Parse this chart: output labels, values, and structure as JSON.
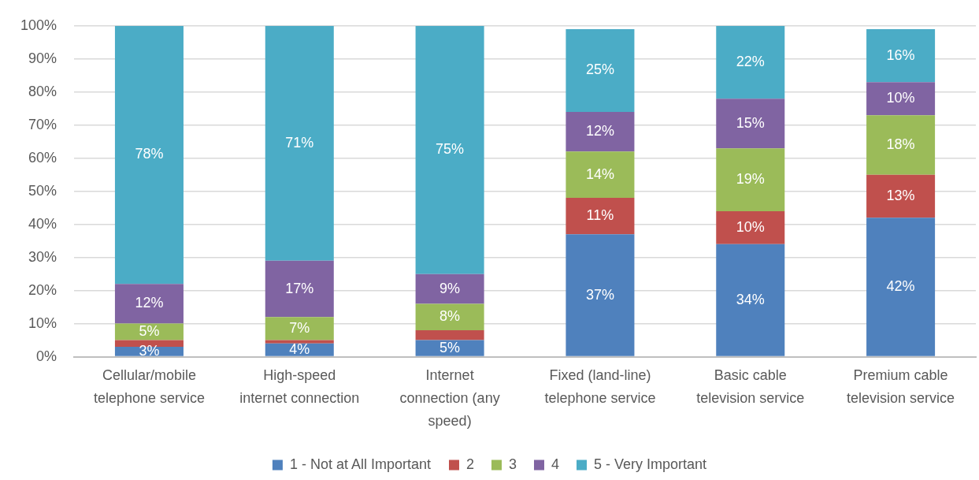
{
  "chart_data": {
    "type": "bar",
    "stacked": true,
    "categories": [
      "Cellular/mobile telephone service",
      "High-speed internet connection",
      "Internet connection (any speed)",
      "Fixed (land-line) telephone service",
      "Basic cable television service",
      "Premium cable television service"
    ],
    "series": [
      {
        "name": "1 - Not at All Important",
        "color": "#4f81bd",
        "values": [
          3,
          4,
          5,
          37,
          34,
          42
        ],
        "value_labels": [
          "3%",
          "4%",
          "5%",
          "37%",
          "34%",
          "42%"
        ]
      },
      {
        "name": "2",
        "color": "#c0504d",
        "values": [
          2,
          1,
          3,
          11,
          10,
          13
        ],
        "value_labels": [
          null,
          null,
          null,
          "11%",
          "10%",
          "13%"
        ]
      },
      {
        "name": "3",
        "color": "#9bbb59",
        "values": [
          5,
          7,
          8,
          14,
          19,
          18
        ],
        "value_labels": [
          "5%",
          "7%",
          "8%",
          "14%",
          "19%",
          "18%"
        ]
      },
      {
        "name": "4",
        "color": "#8064a2",
        "values": [
          12,
          17,
          9,
          12,
          15,
          10
        ],
        "value_labels": [
          "12%",
          "17%",
          "9%",
          "12%",
          "15%",
          "10%"
        ]
      },
      {
        "name": "5 - Very Important",
        "color": "#4bacc6",
        "values": [
          78,
          71,
          75,
          25,
          22,
          16
        ],
        "value_labels": [
          "78%",
          "71%",
          "75%",
          "25%",
          "22%",
          "16%"
        ]
      }
    ],
    "ylim": [
      0,
      100
    ],
    "yticks": [
      {
        "value": 0,
        "label": "0%"
      },
      {
        "value": 10,
        "label": "10%"
      },
      {
        "value": 20,
        "label": "20%"
      },
      {
        "value": 30,
        "label": "30%"
      },
      {
        "value": 40,
        "label": "40%"
      },
      {
        "value": 50,
        "label": "50%"
      },
      {
        "value": 60,
        "label": "60%"
      },
      {
        "value": 70,
        "label": "70%"
      },
      {
        "value": 80,
        "label": "80%"
      },
      {
        "value": 90,
        "label": "90%"
      },
      {
        "value": 100,
        "label": "100%"
      }
    ],
    "grid": "y",
    "legend": "bottom"
  }
}
